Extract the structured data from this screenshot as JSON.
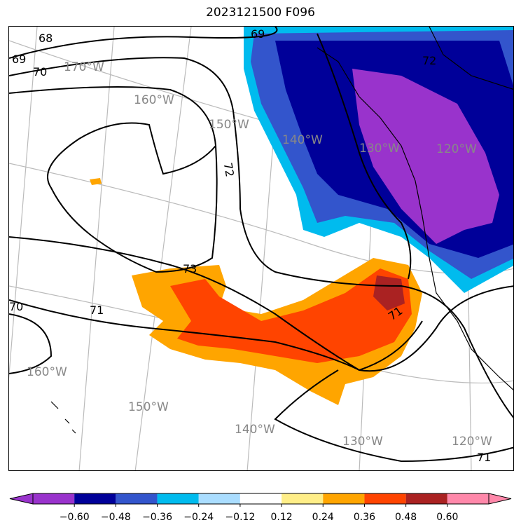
{
  "title": "2023121500 F096",
  "colorbar": {
    "colors": [
      "#9933cc",
      "#000099",
      "#3355cc",
      "#00bbee",
      "#aaddff",
      "#ffffff",
      "#ffee88",
      "#ffa500",
      "#ff4400",
      "#aa2222",
      "#ff88aa"
    ],
    "ticks": [
      "−0.60",
      "−0.48",
      "−0.36",
      "−0.24",
      "−0.12",
      "0.12",
      "0.24",
      "0.36",
      "0.48",
      "0.60"
    ]
  },
  "contour_labels": [
    {
      "name": "contour-label-68-nw",
      "text": "68"
    },
    {
      "name": "contour-label-69-nw",
      "text": "69"
    },
    {
      "name": "contour-label-70-nw",
      "text": "70"
    },
    {
      "name": "contour-label-69-n",
      "text": "69"
    },
    {
      "name": "contour-label-72-ne",
      "text": "72"
    },
    {
      "name": "contour-label-72-center",
      "text": "72"
    },
    {
      "name": "contour-label-73",
      "text": "73"
    },
    {
      "name": "contour-label-70-w",
      "text": "70"
    },
    {
      "name": "contour-label-71-w",
      "text": "71"
    },
    {
      "name": "contour-label-71-e",
      "text": "71"
    },
    {
      "name": "contour-label-71-se",
      "text": "71"
    }
  ],
  "grid_labels": [
    {
      "name": "grid-label-170w-top",
      "text": "170°W"
    },
    {
      "name": "grid-label-160w-top",
      "text": "160°W"
    },
    {
      "name": "grid-label-150w-top",
      "text": "150°W"
    },
    {
      "name": "grid-label-140w-top",
      "text": "140°W"
    },
    {
      "name": "grid-label-130w-top",
      "text": "130°W"
    },
    {
      "name": "grid-label-120w-top",
      "text": "120°W"
    },
    {
      "name": "grid-label-160w-bottom",
      "text": "160°W"
    },
    {
      "name": "grid-label-150w-bottom",
      "text": "150°W"
    },
    {
      "name": "grid-label-140w-bottom",
      "text": "140°W"
    },
    {
      "name": "grid-label-130w-bottom",
      "text": "130°W"
    },
    {
      "name": "grid-label-120w-bottom",
      "text": "120°W"
    }
  ]
}
